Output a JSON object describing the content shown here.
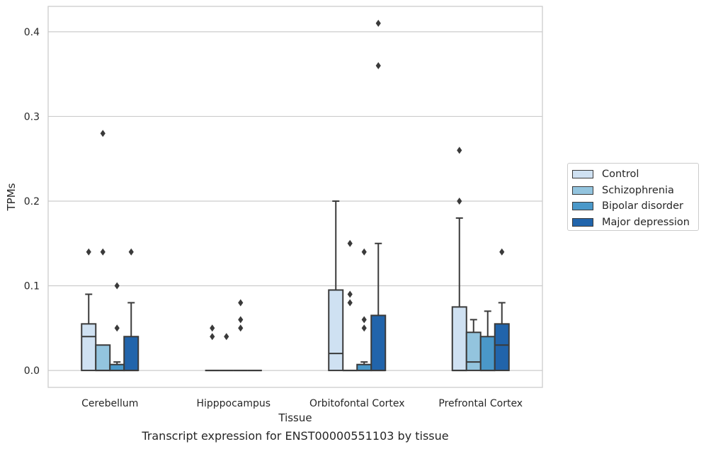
{
  "chart_data": {
    "type": "box",
    "xlabel": "Tissue",
    "ylabel": "TPMs",
    "caption": "Transcript expression for ENST00000551103 by tissue",
    "ylim": [
      -0.02,
      0.43
    ],
    "yticks": [
      "0.0",
      "0.1",
      "0.2",
      "0.3",
      "0.4"
    ],
    "ytick_values": [
      0.0,
      0.1,
      0.2,
      0.3,
      0.4
    ],
    "grid": "horizontal",
    "legend_position": "right",
    "categories": [
      "Cerebellum",
      "Hipppocampus",
      "Orbitofontal Cortex",
      "Prefrontal Cortex"
    ],
    "series": [
      {
        "name": "Control",
        "color": "#cfe1f2",
        "boxes": [
          {
            "q1": 0.0,
            "median": 0.04,
            "q3": 0.055,
            "whisker_low": 0.0,
            "whisker_high": 0.09,
            "outliers": [
              0.14
            ]
          },
          {
            "q1": 0.0,
            "median": 0.0,
            "q3": 0.0,
            "whisker_low": 0.0,
            "whisker_high": 0.0,
            "outliers": [
              0.04,
              0.05
            ]
          },
          {
            "q1": 0.0,
            "median": 0.02,
            "q3": 0.095,
            "whisker_low": 0.0,
            "whisker_high": 0.2,
            "outliers": []
          },
          {
            "q1": 0.0,
            "median": 0.0,
            "q3": 0.075,
            "whisker_low": 0.0,
            "whisker_high": 0.18,
            "outliers": [
              0.2,
              0.26
            ]
          }
        ]
      },
      {
        "name": "Schizophrenia",
        "color": "#93c4de",
        "boxes": [
          {
            "q1": 0.0,
            "median": 0.0,
            "q3": 0.03,
            "whisker_low": 0.0,
            "whisker_high": 0.03,
            "outliers": [
              0.14,
              0.28
            ]
          },
          {
            "q1": 0.0,
            "median": 0.0,
            "q3": 0.0,
            "whisker_low": 0.0,
            "whisker_high": 0.0,
            "outliers": [
              0.04
            ]
          },
          {
            "q1": 0.0,
            "median": 0.0,
            "q3": 0.0,
            "whisker_low": 0.0,
            "whisker_high": 0.0,
            "outliers": [
              0.08,
              0.09,
              0.15
            ]
          },
          {
            "q1": 0.0,
            "median": 0.01,
            "q3": 0.045,
            "whisker_low": 0.0,
            "whisker_high": 0.06,
            "outliers": []
          }
        ]
      },
      {
        "name": "Bipolar disorder",
        "color": "#4a98c9",
        "boxes": [
          {
            "q1": 0.0,
            "median": 0.0,
            "q3": 0.007,
            "whisker_low": 0.0,
            "whisker_high": 0.01,
            "outliers": [
              0.05,
              0.1
            ]
          },
          {
            "q1": 0.0,
            "median": 0.0,
            "q3": 0.0,
            "whisker_low": 0.0,
            "whisker_high": 0.0,
            "outliers": [
              0.05,
              0.06,
              0.08
            ]
          },
          {
            "q1": 0.0,
            "median": 0.0,
            "q3": 0.007,
            "whisker_low": 0.0,
            "whisker_high": 0.01,
            "outliers": [
              0.05,
              0.06,
              0.14
            ]
          },
          {
            "q1": 0.0,
            "median": 0.0,
            "q3": 0.04,
            "whisker_low": 0.0,
            "whisker_high": 0.07,
            "outliers": []
          }
        ]
      },
      {
        "name": "Major depression",
        "color": "#2164ab",
        "boxes": [
          {
            "q1": 0.0,
            "median": 0.0,
            "q3": 0.04,
            "whisker_low": 0.0,
            "whisker_high": 0.08,
            "outliers": [
              0.14
            ]
          },
          {
            "q1": 0.0,
            "median": 0.0,
            "q3": 0.0,
            "whisker_low": 0.0,
            "whisker_high": 0.0,
            "outliers": []
          },
          {
            "q1": 0.0,
            "median": 0.0,
            "q3": 0.065,
            "whisker_low": 0.0,
            "whisker_high": 0.15,
            "outliers": [
              0.36,
              0.41
            ]
          },
          {
            "q1": 0.0,
            "median": 0.03,
            "q3": 0.055,
            "whisker_low": 0.0,
            "whisker_high": 0.08,
            "outliers": [
              0.14
            ]
          }
        ]
      }
    ]
  },
  "legend": {
    "items": [
      {
        "label": "Control",
        "color": "#cfe1f2"
      },
      {
        "label": "Schizophrenia",
        "color": "#93c4de"
      },
      {
        "label": "Bipolar disorder",
        "color": "#4a98c9"
      },
      {
        "label": "Major depression",
        "color": "#2164ab"
      }
    ]
  }
}
